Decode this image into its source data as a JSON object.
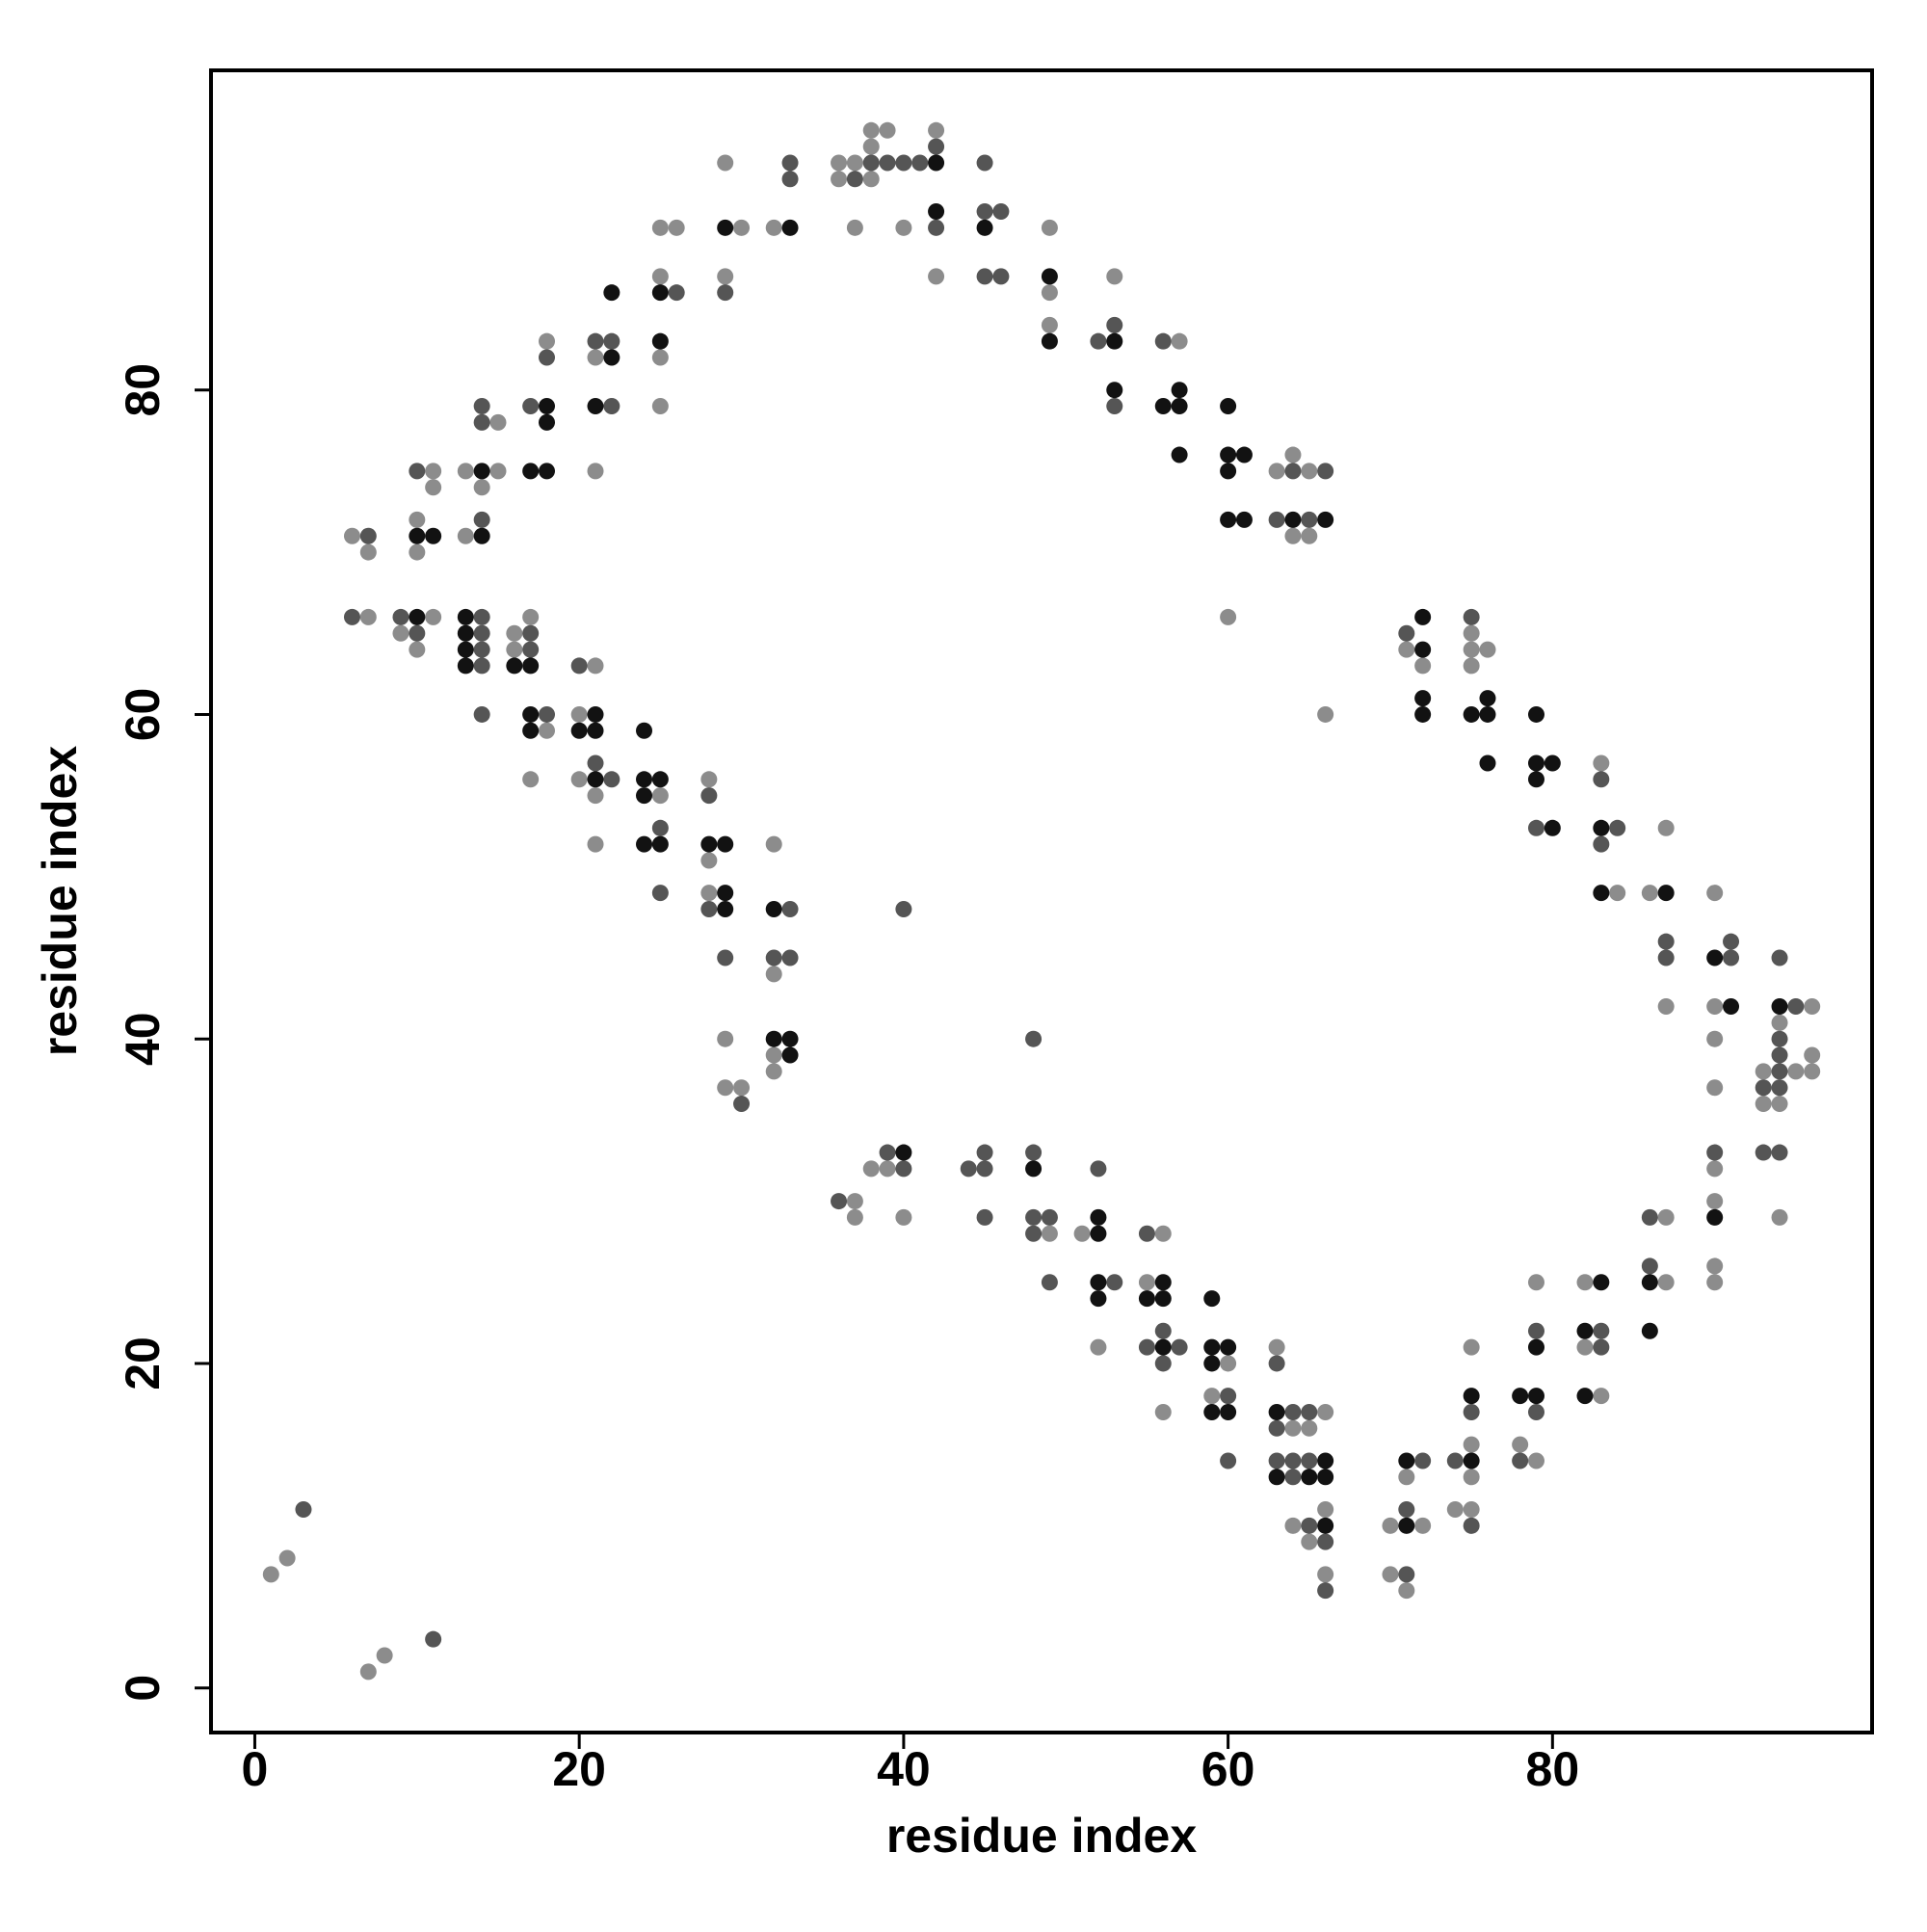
{
  "chart_data": {
    "type": "scatter",
    "xlabel": "residue index",
    "ylabel": "residue index",
    "xlim": [
      -2.7,
      99.7
    ],
    "ylim": [
      -2.75,
      99.7
    ],
    "xticks": [
      0,
      20,
      40,
      60,
      80
    ],
    "yticks": [
      0,
      20,
      40,
      60,
      80
    ],
    "grid": false,
    "series": [
      {
        "color": "#8c8c8c",
        "x": [
          1,
          2,
          7,
          8,
          6,
          7,
          7,
          9,
          10,
          11,
          11,
          10,
          10,
          11,
          13,
          14,
          13,
          15,
          15,
          16,
          16,
          17,
          18,
          17,
          18,
          21,
          20,
          20,
          21,
          21,
          21,
          21,
          25,
          25,
          25,
          25,
          25,
          26,
          28,
          28,
          28,
          29,
          29,
          30,
          29,
          30,
          29,
          32,
          32,
          32,
          32,
          32,
          36,
          37,
          36,
          38,
          37,
          38,
          39,
          38,
          42,
          40,
          42,
          49,
          49,
          49,
          53,
          57,
          60,
          63,
          65,
          64,
          64,
          65,
          66,
          71,
          72,
          75,
          75,
          76,
          75,
          83,
          84,
          86,
          87,
          87,
          90,
          90,
          90,
          90,
          90,
          90,
          90,
          90,
          96,
          94,
          93,
          95,
          96,
          96,
          93,
          94,
          94,
          37,
          37,
          38,
          39,
          40,
          49,
          51,
          52,
          56,
          55,
          56,
          60,
          59,
          63,
          66,
          64,
          65,
          64,
          65,
          66,
          66,
          70,
          72,
          71,
          70,
          71,
          74,
          75,
          75,
          75,
          75,
          78,
          79,
          79,
          82,
          82,
          83,
          87,
          87
        ],
        "y": [
          7,
          8,
          1,
          2,
          71,
          70,
          66,
          65,
          64,
          75,
          74,
          72,
          70,
          66,
          75,
          74,
          71,
          78,
          75,
          65,
          64,
          66,
          59,
          56,
          83,
          63,
          60,
          56,
          55,
          52,
          82,
          75,
          55,
          87,
          82,
          79,
          90,
          90,
          56,
          51,
          49,
          40,
          37,
          37,
          94,
          90,
          87,
          90,
          52,
          44,
          39,
          38,
          94,
          94,
          93,
          93,
          90,
          96,
          96,
          95,
          96,
          90,
          87,
          90,
          86,
          84,
          87,
          83,
          66,
          75,
          75,
          76,
          71,
          71,
          60,
          64,
          63,
          65,
          64,
          64,
          63,
          57,
          49,
          49,
          53,
          42,
          49,
          42,
          40,
          37,
          32,
          30,
          26,
          25,
          42,
          41,
          38,
          38,
          38,
          39,
          36,
          36,
          29,
          30,
          29,
          32,
          32,
          29,
          28,
          28,
          21,
          28,
          25,
          17,
          20,
          18,
          21,
          17,
          16,
          16,
          10,
          9,
          11,
          7,
          10,
          10,
          13,
          7,
          6,
          11,
          11,
          13,
          15,
          21,
          15,
          14,
          25,
          25,
          21,
          18,
          25,
          29
        ]
      },
      {
        "color": "#555555",
        "x": [
          3,
          11,
          7,
          6,
          9,
          10,
          10,
          14,
          14,
          14,
          14,
          14,
          14,
          14,
          14,
          17,
          17,
          18,
          17,
          18,
          20,
          21,
          22,
          21,
          22,
          22,
          25,
          25,
          26,
          28,
          28,
          29,
          30,
          29,
          33,
          33,
          33,
          32,
          33,
          38,
          37,
          39,
          40,
          41,
          42,
          42,
          45,
          45,
          46,
          45,
          46,
          52,
          53,
          53,
          56,
          64,
          66,
          63,
          65,
          71,
          75,
          79,
          83,
          84,
          83,
          87,
          87,
          91,
          91,
          90,
          94,
          95,
          94,
          94,
          93,
          94,
          94,
          93,
          94,
          36,
          39,
          40,
          40,
          44,
          45,
          45,
          45,
          48,
          48,
          48,
          49,
          48,
          49,
          52,
          53,
          55,
          56,
          55,
          57,
          56,
          60,
          60,
          63,
          64,
          65,
          63,
          63,
          64,
          65,
          64,
          65,
          66,
          66,
          71,
          72,
          71,
          74,
          75,
          75,
          79,
          78,
          79,
          83,
          83,
          86,
          86
        ],
        "y": [
          11,
          3,
          71,
          66,
          66,
          65,
          75,
          72,
          79,
          78,
          66,
          65,
          64,
          63,
          60,
          65,
          64,
          60,
          79,
          82,
          63,
          57,
          56,
          83,
          83,
          79,
          53,
          49,
          86,
          55,
          48,
          45,
          36,
          86,
          94,
          93,
          48,
          45,
          45,
          94,
          93,
          94,
          94,
          94,
          95,
          90,
          94,
          91,
          91,
          87,
          87,
          83,
          84,
          79,
          83,
          75,
          75,
          72,
          72,
          65,
          66,
          53,
          56,
          53,
          52,
          46,
          45,
          45,
          46,
          33,
          45,
          42,
          40,
          38,
          37,
          37,
          39,
          33,
          33,
          30,
          33,
          32,
          48,
          32,
          32,
          33,
          29,
          40,
          33,
          29,
          29,
          28,
          25,
          32,
          25,
          28,
          22,
          21,
          21,
          20,
          18,
          14,
          20,
          17,
          17,
          16,
          14,
          14,
          14,
          13,
          10,
          9,
          6,
          11,
          14,
          7,
          14,
          10,
          17,
          17,
          14,
          22,
          22,
          21,
          26,
          29
        ]
      },
      {
        "color": "#121212",
        "x": [
          10,
          10,
          11,
          14,
          14,
          13,
          13,
          13,
          13,
          16,
          17,
          17,
          17,
          18,
          18,
          17,
          18,
          21,
          20,
          21,
          21,
          22,
          22,
          21,
          24,
          24,
          25,
          24,
          24,
          25,
          25,
          25,
          28,
          29,
          29,
          29,
          29,
          33,
          32,
          32,
          33,
          33,
          42,
          42,
          45,
          49,
          49,
          53,
          53,
          56,
          57,
          57,
          57,
          60,
          60,
          61,
          60,
          60,
          61,
          64,
          66,
          72,
          72,
          72,
          72,
          75,
          76,
          76,
          76,
          79,
          79,
          80,
          79,
          80,
          83,
          83,
          87,
          90,
          91,
          90,
          94,
          40,
          48,
          52,
          52,
          52,
          52,
          56,
          55,
          56,
          56,
          59,
          59,
          60,
          59,
          59,
          60,
          63,
          66,
          63,
          65,
          66,
          66,
          71,
          71,
          75,
          75,
          78,
          79,
          79,
          83,
          82,
          82,
          86,
          86
        ],
        "y": [
          66,
          71,
          71,
          75,
          71,
          66,
          65,
          64,
          63,
          63,
          63,
          60,
          59,
          79,
          78,
          75,
          75,
          60,
          59,
          59,
          56,
          82,
          86,
          79,
          59,
          56,
          56,
          55,
          52,
          52,
          86,
          83,
          52,
          52,
          49,
          48,
          90,
          90,
          48,
          40,
          40,
          39,
          94,
          91,
          90,
          87,
          83,
          83,
          80,
          79,
          79,
          80,
          76,
          79,
          76,
          76,
          75,
          72,
          72,
          72,
          72,
          66,
          64,
          61,
          60,
          60,
          60,
          61,
          57,
          60,
          57,
          57,
          56,
          53,
          53,
          49,
          49,
          45,
          42,
          29,
          42,
          33,
          32,
          29,
          28,
          25,
          24,
          25,
          24,
          24,
          21,
          24,
          21,
          21,
          20,
          17,
          17,
          17,
          14,
          13,
          13,
          13,
          10,
          10,
          14,
          14,
          18,
          18,
          18,
          21,
          25,
          22,
          18,
          25,
          22
        ]
      }
    ]
  }
}
